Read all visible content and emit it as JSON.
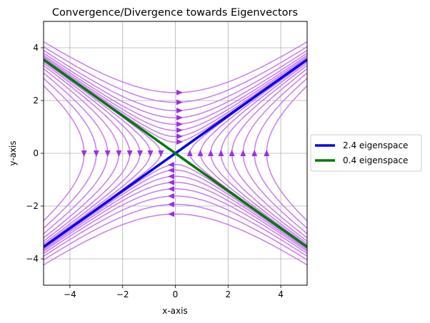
{
  "chart_data": {
    "type": "streamplot",
    "title": "Convergence/Divergence towards Eigenvectors",
    "xlabel": "x-axis",
    "ylabel": "y-axis",
    "xlim": [
      -5,
      5
    ],
    "ylim": [
      -5,
      5
    ],
    "xticks": [
      -4,
      -2,
      0,
      2,
      4
    ],
    "yticks": [
      -4,
      -2,
      0,
      2,
      4
    ],
    "xtick_labels": [
      "−4",
      "−2",
      "0",
      "2",
      "4"
    ],
    "ytick_labels": [
      "−4",
      "−2",
      "0",
      "2",
      "4"
    ],
    "grid": true,
    "legend_position": "right, outside plot",
    "stream_color": "#c77dee",
    "arrow_color": "#9b30e0",
    "series": [
      {
        "name": "2.4 eigenspace",
        "color": "#0000ee",
        "slope": 0.71
      },
      {
        "name": "0.4 eigenspace",
        "color": "#007a00",
        "slope": -0.71
      }
    ]
  }
}
